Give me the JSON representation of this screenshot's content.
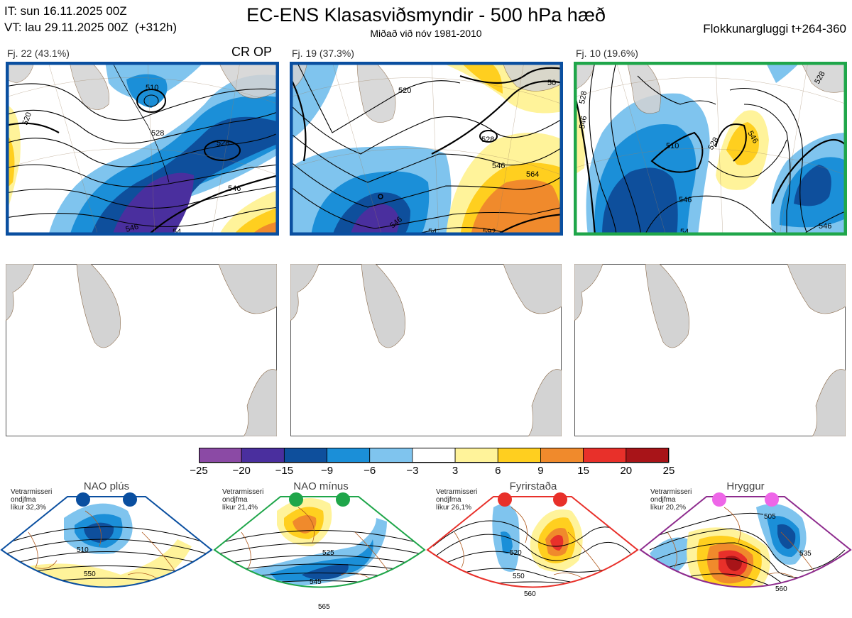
{
  "header": {
    "it_line": "IT: sun 16.11.2025 00Z",
    "vt_line": "VT: lau 29.11.2025 00Z  (+312h)",
    "title": "EC-ENS Klasasviðsmyndir - 500 hPa hæð",
    "subtitle": "Miðað við nóv 1981-2010",
    "window": "Flokkunargluggi t+264-360"
  },
  "clusters": [
    {
      "label": "Fj. 22 (43.1%)",
      "members": 22,
      "percent": 43.1,
      "border_color": "#0a4fa0",
      "tag": "CR OP",
      "contours": [
        "510",
        "520",
        "528",
        "528",
        "546",
        "546",
        "54"
      ]
    },
    {
      "label": "Fj. 19 (37.3%)",
      "members": 19,
      "percent": 37.3,
      "border_color": "#0a4fa0",
      "contours": [
        "520",
        "528",
        "546",
        "564",
        "546",
        "54",
        "592",
        "50"
      ]
    },
    {
      "label": "Fj. 10 (19.6%)",
      "members": 10,
      "percent": 19.6,
      "border_color": "#1fa64a",
      "contours": [
        "528",
        "546",
        "510",
        "528",
        "546",
        "528",
        "546",
        "546",
        "54"
      ]
    }
  ],
  "colorbar": {
    "ticks": [
      "−25",
      "−20",
      "−15",
      "−9",
      "−6",
      "−3",
      "3",
      "6",
      "9",
      "15",
      "20",
      "25"
    ],
    "colors": [
      "#8b4aa5",
      "#4a2f9e",
      "#0e4f9c",
      "#1b8fd8",
      "#7fc4ee",
      "#ffffff",
      "#fff39a",
      "#ffcf1f",
      "#f08a2c",
      "#e8302a",
      "#a81418"
    ]
  },
  "regimes": [
    {
      "name": "NAO plús",
      "info": [
        "Vetrarmisseri",
        "ondjfma",
        "líkur 32,3%"
      ],
      "color": "#0a4fa0",
      "contours": [
        "510",
        "550"
      ]
    },
    {
      "name": "NAO mínus",
      "info": [
        "Vetrarmisseri",
        "ondjfma",
        "líkur 21,4%"
      ],
      "color": "#1fa64a",
      "contours": [
        "525",
        "545",
        "565"
      ]
    },
    {
      "name": "Fyrirstaða",
      "info": [
        "Vetrarmisseri",
        "ondjfma",
        "líkur 26,1%"
      ],
      "color": "#e8302a",
      "contours": [
        "520",
        "550",
        "560"
      ]
    },
    {
      "name": "Hryggur",
      "info": [
        "Vetrarmisseri",
        "ondjfma",
        "líkur 20,2%"
      ],
      "color": "#8e2c8e",
      "dot_color": "#ee66e8",
      "contours": [
        "505",
        "535",
        "560"
      ]
    }
  ]
}
